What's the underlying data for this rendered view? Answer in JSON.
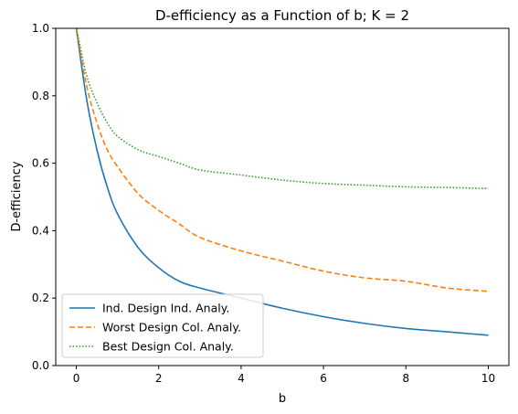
{
  "chart_data": {
    "type": "line",
    "title": "D-efficiency as a Function of b; K = 2",
    "xlabel": "b",
    "ylabel": "D-efficiency",
    "xlim": [
      -0.5,
      10.5
    ],
    "ylim": [
      0.0,
      1.0
    ],
    "xticks": [
      0,
      2,
      4,
      6,
      8,
      10
    ],
    "xtick_labels": [
      "0",
      "2",
      "4",
      "6",
      "8",
      "10"
    ],
    "yticks": [
      0.0,
      0.2,
      0.4,
      0.6,
      0.8,
      1.0
    ],
    "ytick_labels": [
      "0.0",
      "0.2",
      "0.4",
      "0.6",
      "0.8",
      "1.0"
    ],
    "grid": false,
    "legend_position": "lower-left",
    "x": [
      0,
      0.25,
      0.5,
      0.75,
      1,
      1.5,
      2,
      2.5,
      3,
      4,
      5,
      6,
      7,
      8,
      9,
      10
    ],
    "series": [
      {
        "name": "Ind. Design Ind. Analy.",
        "color": "#1f77b4",
        "linestyle": "solid",
        "values": [
          1.0,
          0.79,
          0.64,
          0.53,
          0.45,
          0.35,
          0.29,
          0.25,
          0.23,
          0.2,
          0.17,
          0.145,
          0.125,
          0.11,
          0.1,
          0.09
        ]
      },
      {
        "name": "Worst Design Col. Analy.",
        "color": "#ff7f0e",
        "linestyle": "dashed",
        "values": [
          1.0,
          0.83,
          0.72,
          0.64,
          0.59,
          0.51,
          0.46,
          0.42,
          0.38,
          0.34,
          0.31,
          0.28,
          0.26,
          0.25,
          0.23,
          0.22
        ]
      },
      {
        "name": "Best Design Col. Analy.",
        "color": "#2ca02c",
        "linestyle": "dotted",
        "values": [
          1.0,
          0.86,
          0.78,
          0.72,
          0.68,
          0.64,
          0.62,
          0.6,
          0.58,
          0.565,
          0.55,
          0.54,
          0.535,
          0.53,
          0.528,
          0.525
        ]
      }
    ]
  }
}
